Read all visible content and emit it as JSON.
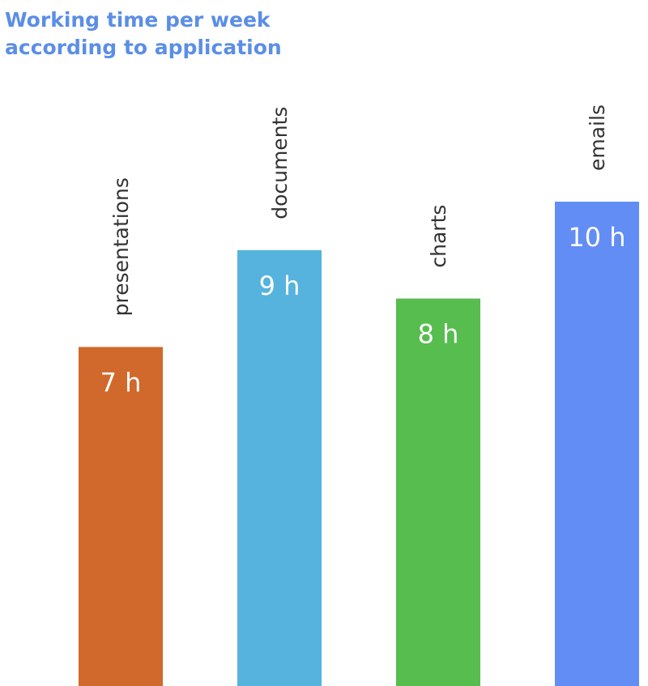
{
  "chart_data": {
    "type": "bar",
    "title_lines": [
      "Working time per week",
      "according to application"
    ],
    "categories": [
      "presentations",
      "documents",
      "charts",
      "emails"
    ],
    "values": [
      7,
      9,
      8,
      10
    ],
    "value_labels": [
      "7 h",
      "9 h",
      "8 h",
      "10 h"
    ],
    "colors": [
      "#d0692b",
      "#55b3de",
      "#56bd4e",
      "#628df5"
    ],
    "xlabel": "",
    "ylabel": "",
    "ylim": [
      0,
      10
    ],
    "grid": false,
    "legend": "none"
  }
}
